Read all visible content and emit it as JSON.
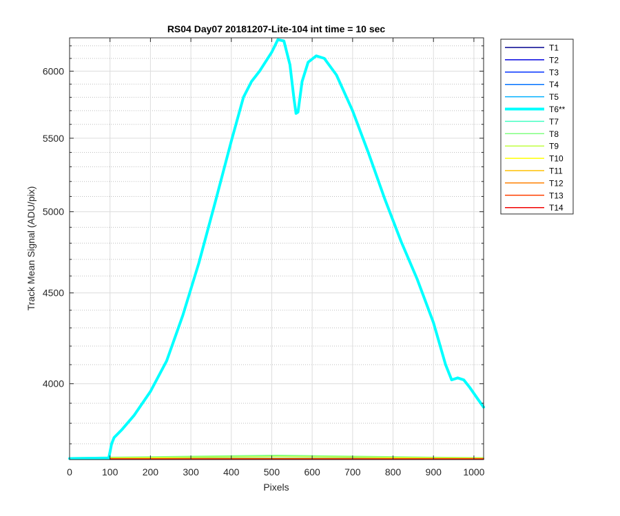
{
  "chart_data": {
    "type": "line",
    "title": "RS04 Day07 20181207-Lite-104 int time = 10 sec",
    "xlabel": "Pixels",
    "ylabel": "Track Mean Signal (ADU/pix)",
    "xlim": [
      0,
      1024
    ],
    "ylim": [
      3625,
      6265
    ],
    "xticks": [
      0,
      100,
      200,
      300,
      400,
      500,
      600,
      700,
      800,
      900,
      1000
    ],
    "yticks": [
      4000,
      4500,
      5000,
      5500,
      6000
    ],
    "ylog": true,
    "grid": true,
    "minor_grid": true,
    "legend_position": "outside-right",
    "series": [
      {
        "name": "T1",
        "color": "#00008F",
        "highlight": false,
        "x": [
          0,
          1024
        ],
        "y": [
          3628,
          3628
        ]
      },
      {
        "name": "T2",
        "color": "#0000DF",
        "highlight": false,
        "x": [
          0,
          1024
        ],
        "y": [
          3629,
          3629
        ]
      },
      {
        "name": "T3",
        "color": "#0030FF",
        "highlight": false,
        "x": [
          0,
          1024
        ],
        "y": [
          3630,
          3630
        ]
      },
      {
        "name": "T4",
        "color": "#0070FF",
        "highlight": false,
        "x": [
          0,
          1024
        ],
        "y": [
          3631,
          3631
        ]
      },
      {
        "name": "T5",
        "color": "#00B0FF",
        "highlight": false,
        "x": [
          0,
          1024
        ],
        "y": [
          3632,
          3632
        ]
      },
      {
        "name": "T6**",
        "color": "#00FFFF",
        "highlight": true,
        "x": [
          0,
          97,
          104,
          110,
          130,
          160,
          200,
          240,
          280,
          320,
          360,
          400,
          430,
          450,
          470,
          500,
          515,
          530,
          545,
          555,
          560,
          565,
          575,
          590,
          610,
          630,
          660,
          700,
          740,
          780,
          820,
          860,
          900,
          930,
          945,
          960,
          975,
          990,
          1010,
          1024
        ],
        "y": [
          3630,
          3632,
          3700,
          3730,
          3770,
          3840,
          3960,
          4120,
          4370,
          4680,
          5060,
          5480,
          5800,
          5920,
          6000,
          6150,
          6250,
          6240,
          6050,
          5790,
          5680,
          5690,
          5920,
          6070,
          6120,
          6100,
          5970,
          5700,
          5390,
          5080,
          4810,
          4580,
          4330,
          4100,
          4020,
          4030,
          4020,
          3980,
          3920,
          3880
        ]
      },
      {
        "name": "T7",
        "color": "#40FFC0",
        "highlight": false,
        "x": [
          0,
          200,
          400,
          512,
          700,
          900,
          1024
        ],
        "y": [
          3633,
          3636,
          3640,
          3642,
          3639,
          3635,
          3633
        ]
      },
      {
        "name": "T8",
        "color": "#80FF80",
        "highlight": false,
        "x": [
          0,
          200,
          400,
          512,
          700,
          900,
          1024
        ],
        "y": [
          3634,
          3638,
          3643,
          3645,
          3641,
          3636,
          3634
        ]
      },
      {
        "name": "T9",
        "color": "#C0FF40",
        "highlight": false,
        "x": [
          0,
          200,
          400,
          512,
          700,
          900,
          1024
        ],
        "y": [
          3632,
          3635,
          3638,
          3640,
          3637,
          3634,
          3632
        ]
      },
      {
        "name": "T10",
        "color": "#FFFF00",
        "highlight": false,
        "x": [
          0,
          1024
        ],
        "y": [
          3631,
          3631
        ]
      },
      {
        "name": "T11",
        "color": "#FFC000",
        "highlight": false,
        "x": [
          0,
          1024
        ],
        "y": [
          3630,
          3630
        ]
      },
      {
        "name": "T12",
        "color": "#FF8000",
        "highlight": false,
        "x": [
          0,
          1024
        ],
        "y": [
          3629,
          3629
        ]
      },
      {
        "name": "T13",
        "color": "#FF4000",
        "highlight": false,
        "x": [
          0,
          1024
        ],
        "y": [
          3628,
          3628
        ]
      },
      {
        "name": "T14",
        "color": "#F00000",
        "highlight": false,
        "x": [
          0,
          1024
        ],
        "y": [
          3627,
          3627
        ]
      }
    ]
  }
}
